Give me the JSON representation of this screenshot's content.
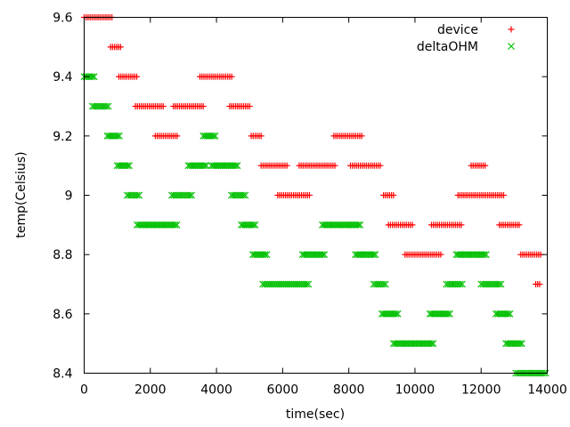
{
  "chart_data": {
    "type": "scatter",
    "title": "",
    "xlabel": "time(sec)",
    "ylabel": "temp(Celsius)",
    "xlim": [
      0,
      14000
    ],
    "ylim": [
      8.4,
      9.6
    ],
    "x_ticks": [
      0,
      2000,
      4000,
      6000,
      8000,
      10000,
      12000,
      14000
    ],
    "x_tick_labels": [
      "0",
      "2000",
      "4000",
      "6000",
      "8000",
      "10000",
      "12000",
      "14000"
    ],
    "y_ticks": [
      8.4,
      8.6,
      8.8,
      9.0,
      9.2,
      9.4,
      9.6
    ],
    "y_tick_labels": [
      "8.4",
      "8.6",
      "8.8",
      "9",
      "9.2",
      "9.4",
      "9.6"
    ],
    "grid": false,
    "legend_position": "top-right",
    "series": [
      {
        "name": "device",
        "marker": "plus",
        "color": "#ff0000",
        "segments": [
          {
            "y": 9.6,
            "x": [
              0,
              850
            ]
          },
          {
            "y": 9.5,
            "x": [
              800,
              1150
            ]
          },
          {
            "y": 9.4,
            "x": [
              1050,
              1600
            ]
          },
          {
            "y": 9.3,
            "x": [
              1550,
              2400
            ]
          },
          {
            "y": 9.2,
            "x": [
              2150,
              2850
            ]
          },
          {
            "y": 9.3,
            "x": [
              2700,
              3650
            ]
          },
          {
            "y": 9.4,
            "x": [
              3500,
              4500
            ]
          },
          {
            "y": 9.3,
            "x": [
              4400,
              5050
            ]
          },
          {
            "y": 9.2,
            "x": [
              5050,
              5350
            ]
          },
          {
            "y": 9.1,
            "x": [
              5350,
              6150
            ]
          },
          {
            "y": 9.0,
            "x": [
              5850,
              6850
            ]
          },
          {
            "y": 9.1,
            "x": [
              6500,
              7600
            ]
          },
          {
            "y": 9.2,
            "x": [
              7550,
              8400
            ]
          },
          {
            "y": 9.1,
            "x": [
              8050,
              9000
            ]
          },
          {
            "y": 9.0,
            "x": [
              9050,
              9400
            ]
          },
          {
            "y": 8.9,
            "x": [
              9200,
              9950
            ]
          },
          {
            "y": 8.8,
            "x": [
              9700,
              10800
            ]
          },
          {
            "y": 8.9,
            "x": [
              10500,
              11450
            ]
          },
          {
            "y": 9.0,
            "x": [
              11300,
              12700
            ]
          },
          {
            "y": 9.1,
            "x": [
              11700,
              12150
            ]
          },
          {
            "y": 8.9,
            "x": [
              12550,
              13200
            ]
          },
          {
            "y": 8.8,
            "x": [
              13200,
              13850
            ]
          },
          {
            "y": 8.7,
            "x": [
              13650,
              13800
            ]
          }
        ]
      },
      {
        "name": "deltaOHM",
        "marker": "cross",
        "color": "#00c000",
        "segments": [
          {
            "y": 9.4,
            "x": [
              0,
              300
            ]
          },
          {
            "y": 9.3,
            "x": [
              250,
              750
            ]
          },
          {
            "y": 9.2,
            "x": [
              700,
              1100
            ]
          },
          {
            "y": 9.1,
            "x": [
              1000,
              1400
            ]
          },
          {
            "y": 9.0,
            "x": [
              1300,
              1700
            ]
          },
          {
            "y": 8.9,
            "x": [
              1600,
              2800
            ]
          },
          {
            "y": 9.0,
            "x": [
              2650,
              3300
            ]
          },
          {
            "y": 9.1,
            "x": [
              3150,
              3700
            ]
          },
          {
            "y": 9.2,
            "x": [
              3600,
              4000
            ]
          },
          {
            "y": 9.1,
            "x": [
              3850,
              4650
            ]
          },
          {
            "y": 9.0,
            "x": [
              4450,
              4900
            ]
          },
          {
            "y": 8.9,
            "x": [
              4750,
              5200
            ]
          },
          {
            "y": 8.8,
            "x": [
              5100,
              5550
            ]
          },
          {
            "y": 8.7,
            "x": [
              5400,
              6800
            ]
          },
          {
            "y": 8.8,
            "x": [
              6600,
              7300
            ]
          },
          {
            "y": 8.9,
            "x": [
              7200,
              8350
            ]
          },
          {
            "y": 8.8,
            "x": [
              8200,
              8800
            ]
          },
          {
            "y": 8.7,
            "x": [
              8750,
              9150
            ]
          },
          {
            "y": 8.6,
            "x": [
              9000,
              9500
            ]
          },
          {
            "y": 8.5,
            "x": [
              9350,
              10550
            ]
          },
          {
            "y": 8.6,
            "x": [
              10450,
              11050
            ]
          },
          {
            "y": 8.7,
            "x": [
              10950,
              11450
            ]
          },
          {
            "y": 8.8,
            "x": [
              11250,
              12200
            ]
          },
          {
            "y": 8.7,
            "x": [
              12000,
              12600
            ]
          },
          {
            "y": 8.6,
            "x": [
              12450,
              12900
            ]
          },
          {
            "y": 8.5,
            "x": [
              12750,
              13250
            ]
          },
          {
            "y": 8.4,
            "x": [
              13050,
              13950
            ]
          }
        ]
      }
    ]
  }
}
